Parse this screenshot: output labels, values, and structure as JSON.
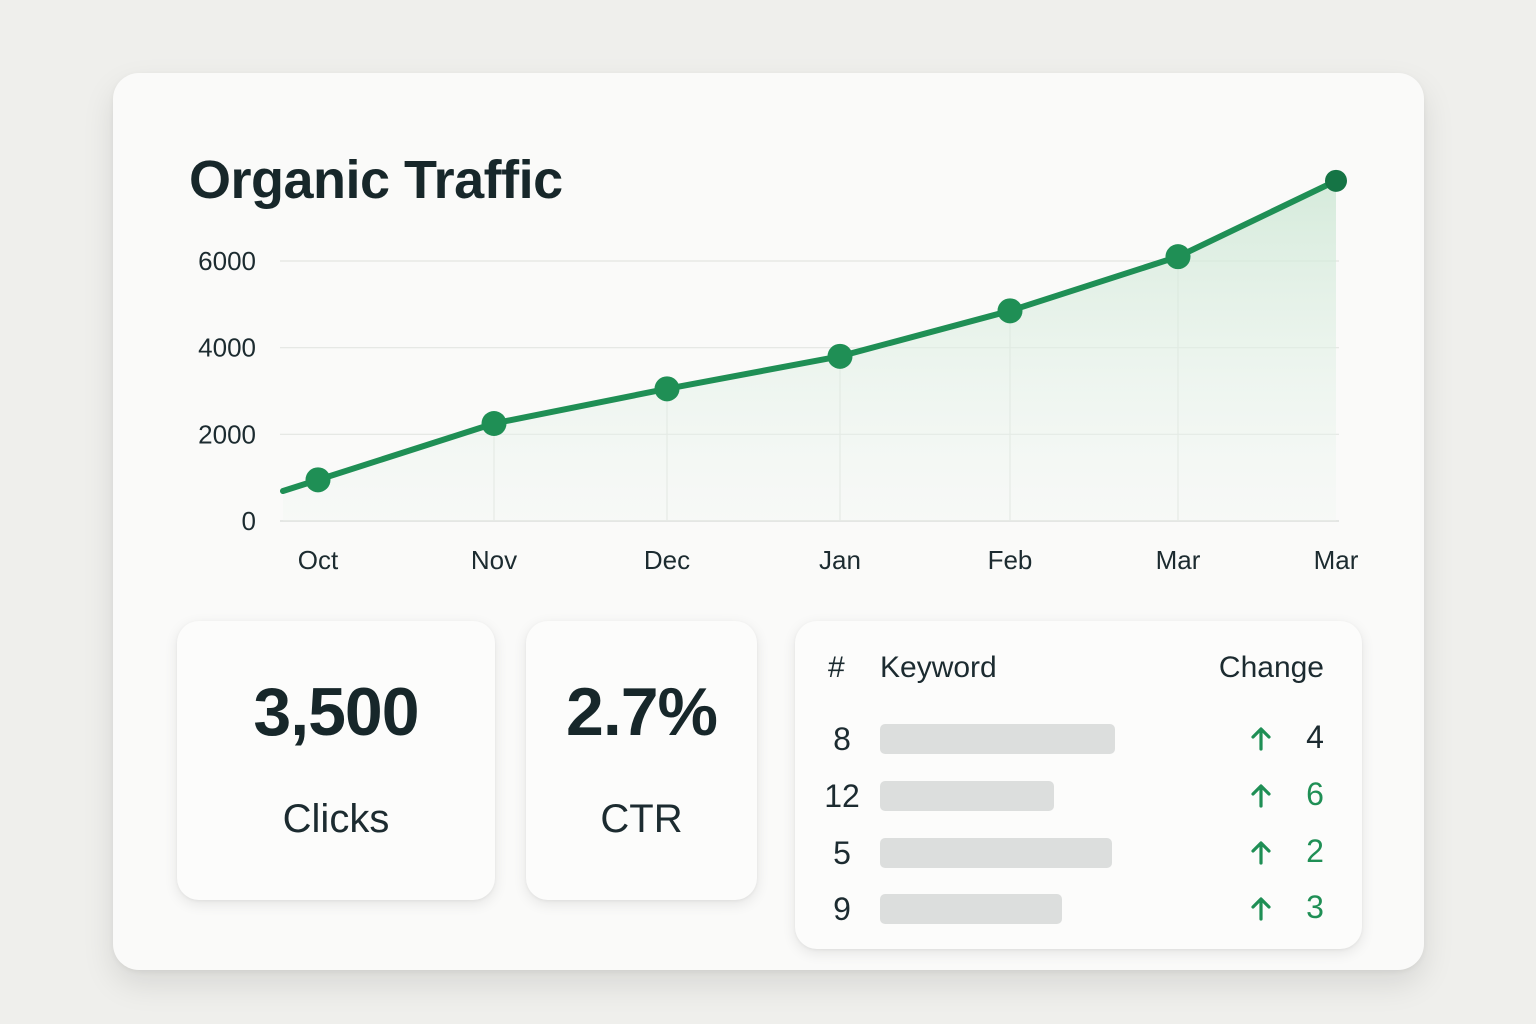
{
  "card": {
    "title": "Organic Traffic"
  },
  "colors": {
    "accent": "#1f8f55",
    "area_fill": "#d6ecdb",
    "gridline": "#e3e5e2",
    "bar_placeholder": "#dcdedd",
    "change_up": "#1f8f55"
  },
  "chart_data": {
    "type": "line",
    "title": "Organic Traffic",
    "xlabel": "",
    "ylabel": "",
    "categories": [
      "Oct",
      "Nov",
      "Dec",
      "Jan",
      "Feb",
      "Mar",
      "Mar"
    ],
    "yticks": [
      "0",
      "2000",
      "4000",
      "6000"
    ],
    "ylim": [
      0,
      6000
    ],
    "grid": true,
    "area_fill": true,
    "series": [
      {
        "values": [
          950,
          2250,
          3050,
          3800,
          4850,
          6100,
          7850
        ]
      }
    ]
  },
  "stats": {
    "clicks": {
      "value": "3,500",
      "label": "Clicks"
    },
    "ctr": {
      "value": "2.7%",
      "label": "CTR"
    }
  },
  "keywords": {
    "header": {
      "rank": "#",
      "keyword": "Keyword",
      "change": "Change"
    },
    "arrow_icon": "arrow-up-icon",
    "rows": [
      {
        "rank": "8",
        "keyword_bar_fill": 0.84,
        "change": "4",
        "change_color": "#1c2b30"
      },
      {
        "rank": "12",
        "keyword_bar_fill": 0.62,
        "change": "6",
        "change_color": "#1f8f55"
      },
      {
        "rank": "5",
        "keyword_bar_fill": 0.83,
        "change": "2",
        "change_color": "#1f8f55"
      },
      {
        "rank": "9",
        "keyword_bar_fill": 0.65,
        "change": "3",
        "change_color": "#1f8f55"
      }
    ]
  }
}
